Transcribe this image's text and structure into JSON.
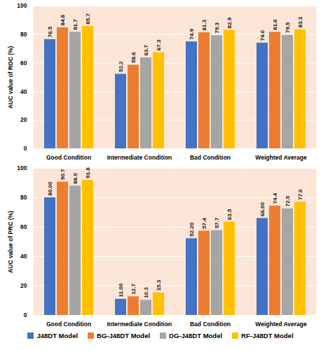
{
  "chart_data": [
    {
      "type": "bar",
      "ylabel": "AUC value of ROC (%)",
      "categories": [
        "Good Condition",
        "Intermediate Condition",
        "Bad Condition",
        "Weighted Average"
      ],
      "series": [
        {
          "name": "J48DT Model",
          "color": "#4472c4",
          "values": [
            76.5,
            52.2,
            74.9,
            74.0
          ],
          "value_labels": [
            "76.5",
            "52.2",
            "74.9",
            "74.0"
          ]
        },
        {
          "name": "BG-J48DT Model",
          "color": "#ed7d31",
          "values": [
            84.8,
            58.6,
            81.3,
            81.6
          ],
          "value_labels": [
            "84.8",
            "58.6",
            "81.3",
            "81.6"
          ]
        },
        {
          "name": "DG-J48DT Model",
          "color": "#a5a5a5",
          "values": [
            81.7,
            63.7,
            79.3,
            79.5
          ],
          "value_labels": [
            "81.7",
            "63.7",
            "79.3",
            "79.5"
          ]
        },
        {
          "name": "RF-J48DT Model",
          "color": "#ffc000",
          "values": [
            85.7,
            67.3,
            82.9,
            83.3
          ],
          "value_labels": [
            "85.7",
            "67.3",
            "82.9",
            "83.3"
          ]
        }
      ],
      "ylim": [
        0,
        100
      ],
      "yticks": [
        0,
        20,
        40,
        60,
        80,
        100
      ],
      "grid": true,
      "data_labels": true
    },
    {
      "type": "bar",
      "ylabel": "AUC value of PRC (%)",
      "categories": [
        "Good Condition",
        "Intermediate Condition",
        "Bad Condition",
        "Weighted Average"
      ],
      "series": [
        {
          "name": "J48DT Model",
          "color": "#4472c4",
          "values": [
            80.0,
            11.0,
            52.2,
            66.0
          ],
          "value_labels": [
            "80.00",
            "11.00",
            "52.20",
            "66.00"
          ]
        },
        {
          "name": "BG-J48DT Model",
          "color": "#ed7d31",
          "values": [
            90.7,
            12.7,
            57.4,
            74.4
          ],
          "value_labels": [
            "90.7",
            "12.7",
            "57.4",
            "74.4"
          ]
        },
        {
          "name": "DG-J48DT Model",
          "color": "#a5a5a5",
          "values": [
            88.0,
            10.3,
            57.7,
            72.5
          ],
          "value_labels": [
            "88.0",
            "10.3",
            "57.7",
            "72.5"
          ]
        },
        {
          "name": "RF-J48DT Model",
          "color": "#ffc000",
          "values": [
            91.8,
            15.3,
            63.5,
            77.0
          ],
          "value_labels": [
            "91.8",
            "15.3",
            "63.5",
            "77.0"
          ]
        }
      ],
      "ylim": [
        0,
        100
      ],
      "yticks": [
        0,
        20,
        40,
        60,
        80,
        100
      ],
      "grid": true,
      "data_labels": true,
      "legend": "bottom"
    }
  ]
}
